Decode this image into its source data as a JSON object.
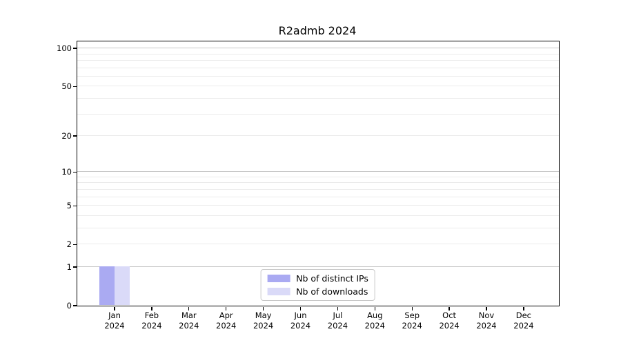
{
  "title": "R2admb 2024",
  "colors": {
    "background": "#ffffff",
    "axis": "#000000",
    "text": "#000000",
    "grid_major": "#c6c6c6",
    "grid_minor": "#ebebeb",
    "legend_border": "#c8c8c8",
    "bar_distinct_ips": "#aaaaf2",
    "bar_downloads": "#dadaf8"
  },
  "chart_data": {
    "type": "bar",
    "title": "R2admb 2024",
    "categories": [
      {
        "month": "Jan",
        "year": "2024"
      },
      {
        "month": "Feb",
        "year": "2024"
      },
      {
        "month": "Mar",
        "year": "2024"
      },
      {
        "month": "Apr",
        "year": "2024"
      },
      {
        "month": "May",
        "year": "2024"
      },
      {
        "month": "Jun",
        "year": "2024"
      },
      {
        "month": "Jul",
        "year": "2024"
      },
      {
        "month": "Aug",
        "year": "2024"
      },
      {
        "month": "Sep",
        "year": "2024"
      },
      {
        "month": "Oct",
        "year": "2024"
      },
      {
        "month": "Nov",
        "year": "2024"
      },
      {
        "month": "Dec",
        "year": "2024"
      }
    ],
    "series": [
      {
        "name": "Nb of distinct IPs",
        "color": "#aaaaf2",
        "values": [
          1,
          0,
          0,
          0,
          0,
          0,
          0,
          0,
          0,
          0,
          0,
          0
        ]
      },
      {
        "name": "Nb of downloads",
        "color": "#dadaf8",
        "values": [
          1,
          0,
          0,
          0,
          0,
          0,
          0,
          0,
          0,
          0,
          0,
          0
        ]
      }
    ],
    "y_axis": {
      "scale": "log1p",
      "tick_values": [
        0,
        1,
        2,
        5,
        10,
        20,
        50,
        100
      ],
      "major_gridlines": [
        1,
        10,
        100
      ],
      "minor_gridlines": [
        2,
        3,
        4,
        5,
        6,
        7,
        8,
        9,
        20,
        30,
        40,
        50,
        60,
        70,
        80,
        90
      ],
      "range": [
        0,
        113
      ]
    },
    "xlabel": "",
    "ylabel": "",
    "grid": true,
    "legend": {
      "position": "lower center",
      "entries": [
        "Nb of distinct IPs",
        "Nb of downloads"
      ]
    }
  }
}
